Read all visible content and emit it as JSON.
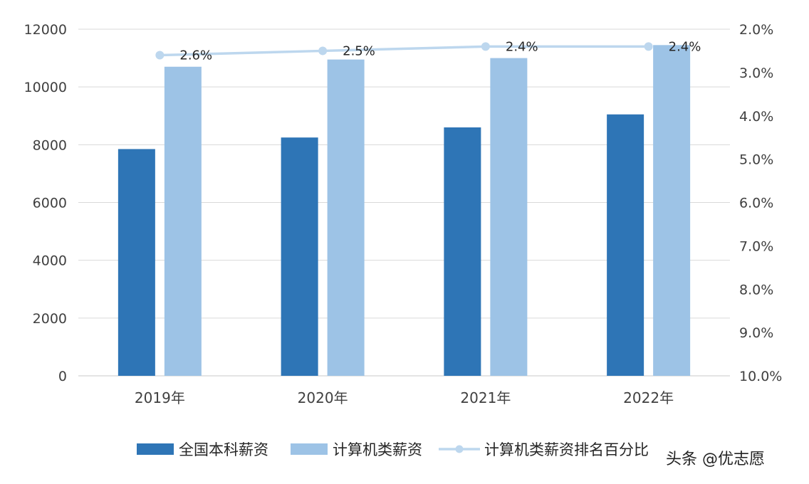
{
  "chart_data": {
    "type": "bar",
    "categories": [
      "2019年",
      "2020年",
      "2021年",
      "2022年"
    ],
    "series": [
      {
        "name": "全国本科薪资",
        "kind": "bar",
        "axis": "left",
        "color": "#2e75b6",
        "values": [
          7850,
          8250,
          8600,
          9050
        ]
      },
      {
        "name": "计算机类薪资",
        "kind": "bar",
        "axis": "left",
        "color": "#9dc3e6",
        "values": [
          10700,
          10950,
          11000,
          11450
        ]
      },
      {
        "name": "计算机类薪资排名百分比",
        "kind": "line",
        "axis": "right",
        "color": "#bdd7ee",
        "values": [
          2.6,
          2.5,
          2.4,
          2.4
        ],
        "labels": [
          "2.6%",
          "2.5%",
          "2.4%",
          "2.4%"
        ]
      }
    ],
    "y_left": {
      "min": 0,
      "max": 12000,
      "ticks": [
        "0",
        "2000",
        "4000",
        "6000",
        "8000",
        "10000",
        "12000"
      ]
    },
    "y_right": {
      "min": 2.0,
      "max": 10.0,
      "reversed": true,
      "ticks": [
        "2.0%",
        "3.0%",
        "4.0%",
        "5.0%",
        "6.0%",
        "7.0%",
        "8.0%",
        "9.0%",
        "10.0%"
      ]
    },
    "grid": true,
    "legend_position": "bottom"
  },
  "credit": "头条 @优志愿"
}
